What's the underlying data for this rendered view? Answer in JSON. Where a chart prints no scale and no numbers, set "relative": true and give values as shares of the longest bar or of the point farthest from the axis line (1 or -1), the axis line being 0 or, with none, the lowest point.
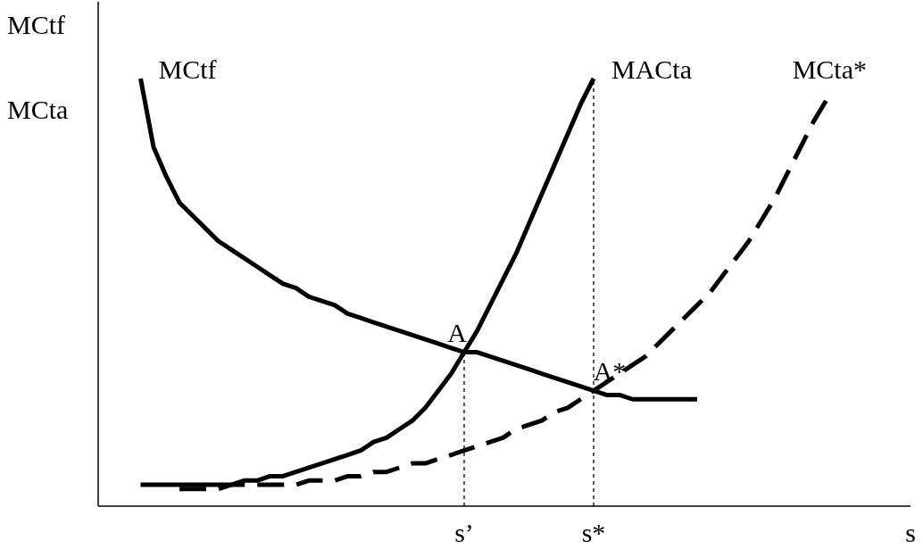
{
  "chart_data": {
    "type": "line",
    "relative": true,
    "xlabel": "s",
    "ylabel": "MCtf\nMCta",
    "line_style": "solid",
    "categories": [
      null,
      null,
      null,
      null,
      null,
      null,
      null,
      null,
      null,
      null,
      null,
      null,
      null,
      null,
      null,
      null,
      null,
      null,
      null,
      null,
      null,
      null,
      null,
      null,
      null,
      "s’",
      null,
      null,
      null,
      null,
      null,
      null,
      null,
      null,
      null,
      "s*",
      null,
      null,
      null,
      null,
      null,
      null,
      null,
      null,
      null,
      null,
      null,
      null,
      null,
      null,
      null,
      null,
      null,
      null
    ],
    "series": [
      {
        "name": "MCtf",
        "color": "#000000",
        "values": [
          1.0,
          0.84,
          0.77,
          0.71,
          0.68,
          0.65,
          0.62,
          0.6,
          0.58,
          0.56,
          0.54,
          0.52,
          0.51,
          0.49,
          0.48,
          0.47,
          0.45,
          0.44,
          0.43,
          0.42,
          0.41,
          0.4,
          0.39,
          0.38,
          0.37,
          0.36,
          0.36,
          0.35,
          0.34,
          0.33,
          0.32,
          0.31,
          0.3,
          0.29,
          0.28,
          0.27,
          0.26,
          0.26,
          0.25,
          0.25,
          0.25,
          0.25,
          0.25,
          0.25,
          null,
          null,
          null,
          null,
          null,
          null,
          null,
          null,
          null,
          null
        ]
      },
      {
        "name": "MACta",
        "color": "#000000",
        "values": [
          0.05,
          0.05,
          0.05,
          0.05,
          0.05,
          0.05,
          0.05,
          0.05,
          0.06,
          0.06,
          0.07,
          0.07,
          0.08,
          0.09,
          0.1,
          0.11,
          0.12,
          0.13,
          0.15,
          0.16,
          0.18,
          0.2,
          0.23,
          0.27,
          0.31,
          0.36,
          0.41,
          0.47,
          0.53,
          0.59,
          0.66,
          0.73,
          0.8,
          0.87,
          0.94,
          1.0,
          null,
          null,
          null,
          null,
          null,
          null,
          null,
          null,
          null,
          null,
          null,
          null,
          null,
          null,
          null,
          null,
          null,
          null
        ]
      },
      {
        "name": "MCta*",
        "color": "#000000",
        "line_style": "dashed",
        "values": [
          null,
          null,
          null,
          0.04,
          0.04,
          0.04,
          0.04,
          0.05,
          0.05,
          0.05,
          0.05,
          0.05,
          0.05,
          0.06,
          0.06,
          0.06,
          0.07,
          0.07,
          0.08,
          0.08,
          0.09,
          0.1,
          0.1,
          0.11,
          0.12,
          0.13,
          0.14,
          0.15,
          0.16,
          0.18,
          0.19,
          0.2,
          0.22,
          0.23,
          0.25,
          0.27,
          0.29,
          0.31,
          0.33,
          0.35,
          0.38,
          0.41,
          0.44,
          0.47,
          0.5,
          0.54,
          0.58,
          0.62,
          0.67,
          0.72,
          0.78,
          0.84,
          0.9,
          0.95
        ]
      }
    ],
    "annotations": [
      {
        "text": "A",
        "x": "s’",
        "y": 0.36
      },
      {
        "text": "A*",
        "x": "s*",
        "y": 0.27
      }
    ],
    "ref_lines": [
      {
        "axis": "x",
        "value": "s’",
        "line_style": "dotted"
      },
      {
        "axis": "x",
        "value": "s*",
        "line_style": "dotted"
      }
    ]
  }
}
